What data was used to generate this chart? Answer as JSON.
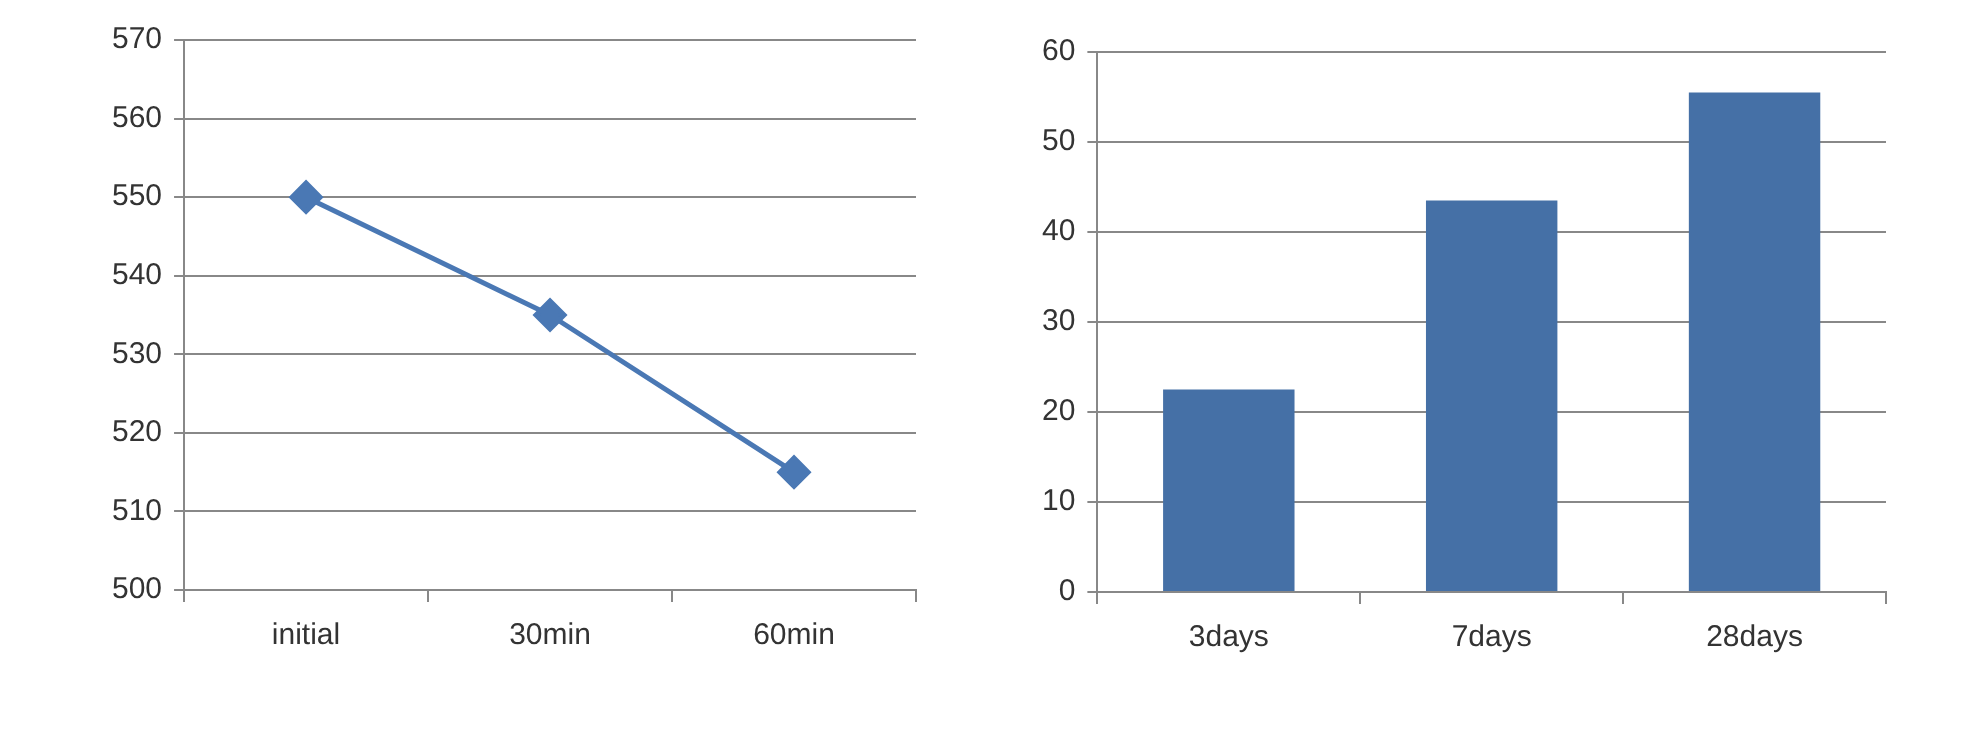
{
  "chart_data": [
    {
      "type": "line",
      "categories": [
        "initial",
        "30min",
        "60min"
      ],
      "series": [
        {
          "color": "#4a78b4",
          "values": [
            550,
            535,
            515
          ]
        }
      ],
      "ylim": [
        500,
        570
      ],
      "yticks": [
        500,
        510,
        520,
        530,
        540,
        550,
        560,
        570
      ],
      "grid": "y",
      "legend": false,
      "marker": "diamond",
      "line_style": "solid"
    },
    {
      "type": "bar",
      "categories": [
        "3days",
        "7days",
        "28days"
      ],
      "series": [
        {
          "color": "#4570a6",
          "values": [
            22.5,
            43.5,
            55.5
          ]
        }
      ],
      "ylim": [
        0,
        60
      ],
      "yticks": [
        0,
        10,
        20,
        30,
        40,
        50,
        60
      ],
      "grid": "y",
      "legend": false
    }
  ]
}
